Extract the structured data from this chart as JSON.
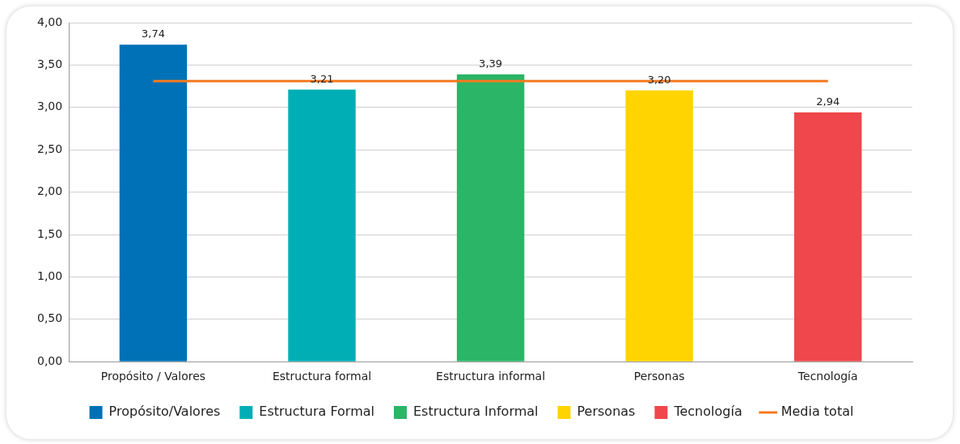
{
  "chart_data": {
    "type": "bar",
    "categories": [
      "Propósito / Valores",
      "Estructura formal",
      "Estructura informal",
      "Personas",
      "Tecnología"
    ],
    "series": [
      {
        "name": "Propósito/Valores",
        "color": "#0071b6",
        "values": [
          3.74,
          null,
          null,
          null,
          null
        ],
        "value_labels": [
          "3,74",
          null,
          null,
          null,
          null
        ]
      },
      {
        "name": "Estructura Formal",
        "color": "#00afb5",
        "values": [
          null,
          3.21,
          null,
          null,
          null
        ],
        "value_labels": [
          null,
          "3,21",
          null,
          null,
          null
        ]
      },
      {
        "name": "Estructura Informal",
        "color": "#2bb566",
        "values": [
          null,
          null,
          3.39,
          null,
          null
        ],
        "value_labels": [
          null,
          null,
          "3,39",
          null,
          null
        ]
      },
      {
        "name": "Personas",
        "color": "#ffd400",
        "values": [
          null,
          null,
          null,
          3.2,
          null
        ],
        "value_labels": [
          null,
          null,
          null,
          "3,20",
          null
        ]
      },
      {
        "name": "Tecnología",
        "color": "#ef474b",
        "values": [
          null,
          null,
          null,
          null,
          2.94
        ],
        "value_labels": [
          null,
          null,
          null,
          null,
          "2,94"
        ]
      },
      {
        "name": "Media total",
        "type": "line",
        "color": "#f47a20",
        "values": [
          3.31,
          3.31,
          3.31,
          3.31,
          3.31
        ]
      }
    ],
    "ylim": [
      0,
      4
    ],
    "yticks": [
      {
        "value": 0,
        "label": "0,00"
      },
      {
        "value": 0.5,
        "label": "0,50"
      },
      {
        "value": 1,
        "label": "1,00"
      },
      {
        "value": 1.5,
        "label": "1,50"
      },
      {
        "value": 2,
        "label": "2,00"
      },
      {
        "value": 2.5,
        "label": "2,50"
      },
      {
        "value": 3,
        "label": "3,00"
      },
      {
        "value": 3.5,
        "label": "3,50"
      },
      {
        "value": 4,
        "label": "4,00"
      }
    ],
    "grid": "y",
    "legend": "bottom",
    "marker": "none"
  }
}
